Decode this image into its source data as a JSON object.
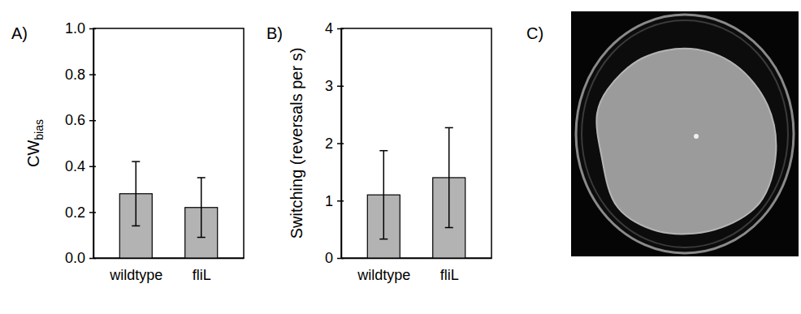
{
  "chart_data": [
    {
      "type": "bar",
      "panel": "A)",
      "y_label": "CWbias",
      "categories": [
        "wildtype",
        "fliL"
      ],
      "values": [
        0.28,
        0.22
      ],
      "errors": [
        0.14,
        0.13
      ],
      "color": "#b3b3b3",
      "ylim": [
        0,
        1
      ],
      "yticks": [
        {
          "value": 0,
          "label": "0.0"
        },
        0.2,
        0.4,
        0.6,
        0.8,
        {
          "value": 1,
          "label": "1.0"
        }
      ]
    },
    {
      "type": "bar",
      "panel": "B)",
      "y_label": "Switching (reversals per s)",
      "categories": [
        "wildtype",
        "fliL"
      ],
      "values": [
        1.1,
        1.4
      ],
      "errors": [
        0.77,
        0.87
      ],
      "color": "#b3b3b3",
      "ylim": [
        0,
        4
      ],
      "yticks": [
        0,
        1,
        2,
        3,
        4
      ]
    }
  ],
  "image_panel": {
    "panel": "C)"
  }
}
